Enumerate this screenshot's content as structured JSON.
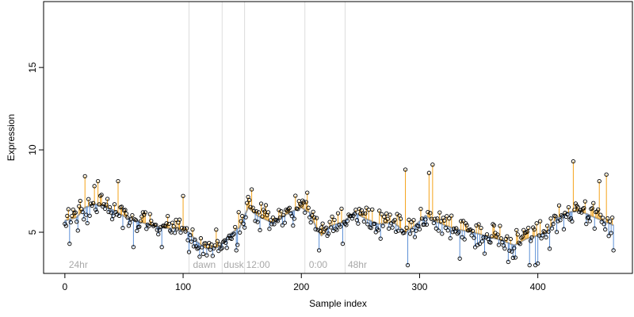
{
  "chart_data": {
    "type": "scatter",
    "title": "",
    "xlabel": "Sample index",
    "ylabel": "Expression",
    "xlim": [
      -18,
      480
    ],
    "ylim": [
      2.5,
      19
    ],
    "x_ticks": [
      0,
      100,
      200,
      300,
      400
    ],
    "y_ticks": [
      5,
      10,
      15
    ],
    "grid": false,
    "legend": "none",
    "phase_boundaries": [
      105,
      133,
      152,
      203,
      237
    ],
    "phase_labels": [
      {
        "label": "24hr",
        "x": 2
      },
      {
        "label": "dawn",
        "x": 107
      },
      {
        "label": "dusk",
        "x": 133
      },
      {
        "label": "12:00",
        "x": 152
      },
      {
        "label": "0:00",
        "x": 205
      },
      {
        "label": "48hr",
        "x": 238
      }
    ],
    "n_points": 465,
    "trend_anchors": [
      [
        0,
        5.7
      ],
      [
        10,
        5.9
      ],
      [
        17,
        6.5
      ],
      [
        25,
        6.7
      ],
      [
        33,
        6.6
      ],
      [
        42,
        6.3
      ],
      [
        52,
        5.9
      ],
      [
        65,
        5.6
      ],
      [
        80,
        5.3
      ],
      [
        95,
        5.2
      ],
      [
        105,
        5.0
      ],
      [
        112,
        4.4
      ],
      [
        120,
        4.0
      ],
      [
        130,
        4.1
      ],
      [
        140,
        4.9
      ],
      [
        148,
        5.3
      ],
      [
        155,
        6.5
      ],
      [
        163,
        6.0
      ],
      [
        175,
        5.6
      ],
      [
        190,
        6.2
      ],
      [
        200,
        6.5
      ],
      [
        207,
        6.2
      ],
      [
        212,
        5.4
      ],
      [
        217,
        4.8
      ],
      [
        225,
        5.4
      ],
      [
        235,
        5.6
      ],
      [
        245,
        6.2
      ],
      [
        255,
        5.8
      ],
      [
        265,
        5.5
      ],
      [
        278,
        5.6
      ],
      [
        288,
        5.0
      ],
      [
        296,
        5.4
      ],
      [
        305,
        6.0
      ],
      [
        315,
        5.6
      ],
      [
        330,
        5.2
      ],
      [
        345,
        5.0
      ],
      [
        355,
        4.8
      ],
      [
        370,
        4.5
      ],
      [
        380,
        4.2
      ],
      [
        390,
        4.6
      ],
      [
        400,
        4.8
      ],
      [
        408,
        5.0
      ],
      [
        415,
        5.8
      ],
      [
        425,
        6.2
      ],
      [
        435,
        6.3
      ],
      [
        445,
        6.0
      ],
      [
        455,
        5.7
      ],
      [
        465,
        5.4
      ]
    ],
    "expression_peaks": [
      [
        17,
        8.4
      ],
      [
        25,
        7.8
      ],
      [
        28,
        8.1
      ],
      [
        45,
        8.1
      ],
      [
        100,
        7.2
      ],
      [
        158,
        7.6
      ],
      [
        205,
        7.4
      ],
      [
        288,
        8.8
      ],
      [
        308,
        8.6
      ],
      [
        311,
        9.1
      ],
      [
        430,
        9.3
      ],
      [
        452,
        8.1
      ],
      [
        458,
        8.5
      ]
    ],
    "expression_troughs": [
      [
        4,
        4.3
      ],
      [
        58,
        4.1
      ],
      [
        82,
        4.1
      ],
      [
        105,
        3.8
      ],
      [
        120,
        3.6
      ],
      [
        145,
        3.9
      ],
      [
        215,
        3.9
      ],
      [
        235,
        4.3
      ],
      [
        290,
        3.0
      ],
      [
        334,
        3.4
      ],
      [
        355,
        3.7
      ],
      [
        375,
        3.2
      ],
      [
        393,
        3.0
      ],
      [
        398,
        3.0
      ],
      [
        400,
        3.1
      ],
      [
        410,
        4.0
      ],
      [
        464,
        3.9
      ]
    ],
    "colors": {
      "above_trend": "#f5a31a",
      "below_trend": "#5b8fd6",
      "trend": "#9e9e9e",
      "points": "#000000",
      "phase_lines": "#dcdcdc"
    }
  }
}
